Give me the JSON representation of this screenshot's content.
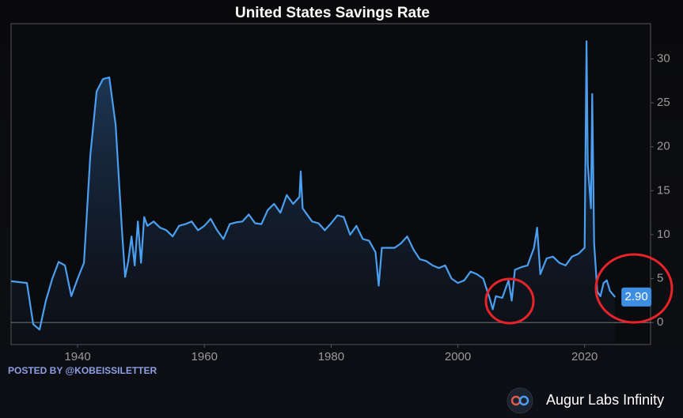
{
  "chart_data": {
    "type": "line",
    "title": "United States Savings Rate",
    "x": [
      1929.5,
      1932,
      1933,
      1934,
      1935,
      1936,
      1937,
      1938,
      1939,
      1940,
      1941,
      1942,
      1943,
      1944,
      1945,
      1946,
      1947,
      1947.5,
      1948,
      1948.5,
      1949,
      1949.5,
      1950,
      1950.5,
      1951,
      1952,
      1953,
      1954,
      1955,
      1956,
      1957,
      1958,
      1959,
      1960,
      1961,
      1962,
      1963,
      1964,
      1965,
      1966,
      1967,
      1968,
      1969,
      1970,
      1971,
      1972,
      1973,
      1974,
      1975,
      1975.2,
      1975.5,
      1976,
      1977,
      1978,
      1979,
      1980,
      1981,
      1982,
      1983,
      1984,
      1985,
      1986,
      1987,
      1987.5,
      1988,
      1989,
      1990,
      1991,
      1992,
      1993,
      1994,
      1995,
      1996,
      1997,
      1998,
      1999,
      2000,
      2001,
      2002,
      2003,
      2004,
      2005,
      2005.5,
      2006,
      2007,
      2008,
      2008.5,
      2009,
      2010,
      2011,
      2012,
      2012.5,
      2013,
      2014,
      2015,
      2016,
      2017,
      2018,
      2019,
      2020,
      2020.3,
      2020.5,
      2021,
      2021.2,
      2021.5,
      2022,
      2022.5,
      2023,
      2023.5,
      2024,
      2024.8
    ],
    "values": [
      4.7,
      4.5,
      -0.2,
      -0.8,
      2.5,
      5,
      6.9,
      6.5,
      3,
      5,
      6.8,
      19,
      26.3,
      27.7,
      27.9,
      22.5,
      10.5,
      5.2,
      7,
      9.8,
      6.5,
      11.5,
      6.8,
      12,
      11,
      11.5,
      10.8,
      10.5,
      9.8,
      11,
      11.2,
      11.5,
      10.5,
      11,
      11.8,
      10.5,
      9.5,
      11.2,
      11.4,
      11.5,
      12.3,
      11.3,
      11.2,
      12.8,
      13.5,
      12.5,
      14.5,
      13.5,
      14.3,
      17.2,
      13,
      12.5,
      11.5,
      11.3,
      10.5,
      11.3,
      12.2,
      12,
      10,
      11,
      9.5,
      9.3,
      8,
      4.2,
      8.5,
      8.5,
      8.5,
      9,
      9.8,
      8.3,
      7.2,
      7,
      6.5,
      6.2,
      6.5,
      5,
      4.5,
      4.8,
      5.8,
      5.5,
      5,
      2.8,
      1.5,
      3,
      2.8,
      4.8,
      2.5,
      6,
      6.3,
      6.5,
      8.5,
      10.8,
      5.5,
      7.3,
      7.5,
      6.8,
      6.5,
      7.5,
      7.8,
      8.5,
      32,
      18,
      13,
      26,
      9,
      3.5,
      3,
      4.5,
      4.8,
      3.6,
      2.9
    ],
    "value_labels": [
      null,
      null,
      null,
      null,
      null,
      null,
      null,
      null,
      null,
      null,
      null,
      null,
      null,
      null,
      null,
      null,
      null,
      null,
      null,
      null,
      null,
      null,
      null,
      null,
      null,
      null,
      null,
      null,
      null,
      null,
      null,
      null,
      null,
      null,
      null,
      null,
      null,
      null,
      null,
      null,
      null,
      null,
      null,
      null,
      null,
      null,
      null,
      null,
      null,
      null,
      null,
      null,
      null,
      null,
      null,
      null,
      null,
      null,
      null,
      null,
      null,
      null,
      null,
      null,
      null,
      null,
      null,
      null,
      null,
      null,
      null,
      null,
      null,
      null,
      null,
      null,
      null,
      null,
      null,
      null,
      null,
      null,
      null,
      null,
      null,
      null,
      null,
      null,
      null,
      null,
      null,
      null,
      null,
      null,
      null,
      null,
      null,
      null,
      null,
      null,
      null,
      null,
      null,
      null,
      null,
      null,
      null,
      null,
      null,
      null,
      "2.90"
    ],
    "color": "#4a9ff0",
    "xlim": [
      1929.5,
      2030.4
    ],
    "xticks": [
      1940,
      1960,
      1980,
      2000,
      2020
    ],
    "ylim": [
      -2.5,
      34
    ],
    "yticks": [
      0,
      5,
      10,
      15,
      20,
      25,
      30
    ],
    "zero_line": true,
    "footer_left": "POSTED BY @KOBEISSILETTER",
    "brand": "Augur Labs Infinity"
  }
}
